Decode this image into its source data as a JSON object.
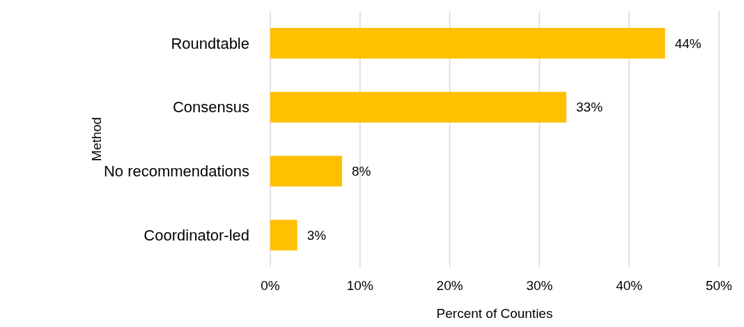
{
  "chart_data": {
    "type": "bar",
    "orientation": "horizontal",
    "xlabel": "Percent of Counties",
    "ylabel": "Method",
    "categories": [
      "Roundtable",
      "Consensus",
      "No recommendations",
      "Coordinator-led"
    ],
    "values": [
      44,
      33,
      8,
      3
    ],
    "value_labels": [
      "44%",
      "33%",
      "8%",
      "3%"
    ],
    "color": "#ffc000",
    "xlim": [
      0,
      50
    ],
    "xticks": [
      {
        "value": 0,
        "label": "0%"
      },
      {
        "value": 10,
        "label": "10%"
      },
      {
        "value": 20,
        "label": "20%"
      },
      {
        "value": 30,
        "label": "30%"
      },
      {
        "value": 40,
        "label": "40%"
      },
      {
        "value": 50,
        "label": "50%"
      }
    ],
    "grid": "x",
    "legend": false
  }
}
